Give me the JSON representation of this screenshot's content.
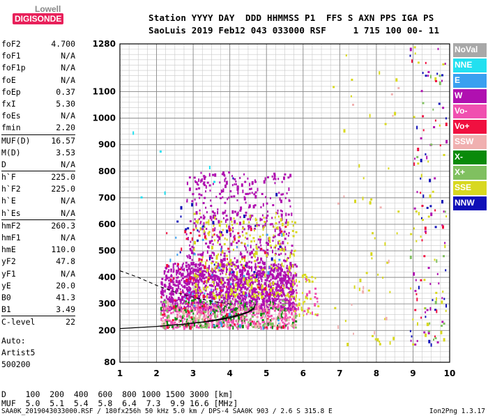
{
  "logo": {
    "top": "Lowell",
    "bottom": "DIGISONDE"
  },
  "header": {
    "line1": "Station YYYY DAY  DDD HHMMSS P1  FFS S AXN PPS IGA PS",
    "line2": "SaoLuis 2019 Feb12 043 033000 RSF     1 715 100 00- 11"
  },
  "params": [
    {
      "k": "foF2",
      "v": "4.700"
    },
    {
      "k": "foF1",
      "v": "N/A"
    },
    {
      "k": "foF1p",
      "v": "N/A"
    },
    {
      "k": "foE",
      "v": "N/A"
    },
    {
      "k": "foEp",
      "v": "0.37"
    },
    {
      "k": "fxI",
      "v": "5.30"
    },
    {
      "k": "foEs",
      "v": "N/A"
    },
    {
      "k": "fmin",
      "v": "2.20"
    },
    {
      "k": "MUF(D)",
      "v": "16.57",
      "sep": true
    },
    {
      "k": "M(D)",
      "v": "3.53"
    },
    {
      "k": "D",
      "v": "N/A"
    },
    {
      "k": "h`F",
      "v": "225.0",
      "sep": true
    },
    {
      "k": "h`F2",
      "v": "225.0"
    },
    {
      "k": "h`E",
      "v": "N/A"
    },
    {
      "k": "h`Es",
      "v": "N/A"
    },
    {
      "k": "hmF2",
      "v": "260.3",
      "sep": true
    },
    {
      "k": "hmF1",
      "v": "N/A"
    },
    {
      "k": "hmE",
      "v": "110.0"
    },
    {
      "k": "yF2",
      "v": "47.8"
    },
    {
      "k": "yF1",
      "v": "N/A"
    },
    {
      "k": "yE",
      "v": "20.0"
    },
    {
      "k": "B0",
      "v": "41.3"
    },
    {
      "k": "B1",
      "v": "3.49"
    },
    {
      "k": "C-level",
      "v": "22",
      "sep": true
    }
  ],
  "left_footer": {
    "l1": "Auto:",
    "l2": "Artist5",
    "l3": "500200"
  },
  "bottom": {
    "d_row": "D    100  200  400  600  800 1000 1500 3000 [km]",
    "muf_row": "MUF  5.0  5.1  5.4  5.8  6.4  7.3  9.9 16.6 [MHz]"
  },
  "footer": {
    "left": "SAA0K_2019043033000.RSF / 180fx256h 50 kHz 5.0 km / DPS-4 SAA0K 903 / 2.6 S 315.8 E",
    "right": "Ion2Png 1.3.17"
  },
  "legend": [
    {
      "label": "NoVal",
      "bg": "#a8a8a8",
      "fg": "#ffffff"
    },
    {
      "label": "NNE",
      "bg": "#22e0f0",
      "fg": "#ffffff"
    },
    {
      "label": "E",
      "bg": "#3aa0f0",
      "fg": "#ffffff"
    },
    {
      "label": "W",
      "bg": "#b010b0",
      "fg": "#ffffff"
    },
    {
      "label": "Vo-",
      "bg": "#f050b0",
      "fg": "#ffffff"
    },
    {
      "label": "Vo+",
      "bg": "#f01040",
      "fg": "#ffffff"
    },
    {
      "label": "SSW",
      "bg": "#f0b0b0",
      "fg": "#ffffff"
    },
    {
      "label": "X-",
      "bg": "#0a8a0a",
      "fg": "#ffffff"
    },
    {
      "label": "X+",
      "bg": "#80c060",
      "fg": "#ffffff"
    },
    {
      "label": "SSE",
      "bg": "#d8d820",
      "fg": "#ffffff"
    },
    {
      "label": "NNW",
      "bg": "#1010b8",
      "fg": "#ffffff"
    }
  ],
  "chart_data": {
    "type": "scatter",
    "title": "",
    "xlabel": "",
    "ylabel": "",
    "xlim": [
      1,
      10
    ],
    "ylim": [
      80,
      1280
    ],
    "x_ticks": [
      1,
      2,
      3,
      4,
      5,
      6,
      7,
      8,
      9,
      10
    ],
    "y_ticks": [
      80,
      200,
      300,
      400,
      500,
      600,
      700,
      800,
      900,
      1000,
      1100,
      1280
    ],
    "grid": true,
    "legend_placement": "right",
    "ordinary_trace": {
      "x": [
        1.0,
        2.0,
        3.0,
        3.5,
        4.0,
        4.3,
        4.5,
        4.65,
        4.7
      ],
      "y": [
        207,
        215,
        227,
        235,
        247,
        258,
        268,
        280,
        300
      ]
    },
    "profile_curve": {
      "x": [
        2.3,
        2.8,
        3.3,
        3.8,
        4.2,
        4.5,
        4.65
      ],
      "y": [
        218,
        224,
        233,
        245,
        258,
        270,
        285
      ]
    },
    "dashed_extrapolation": {
      "x": [
        1.0,
        1.5,
        2.0,
        2.5,
        3.0,
        3.5,
        4.0
      ],
      "y": [
        425,
        400,
        370,
        345,
        325,
        310,
        300
      ]
    },
    "scatter_regions": [
      {
        "x": [
          2.1,
          5.8
        ],
        "y": [
          280,
          460
        ],
        "color": "#b010b0",
        "n": 1100
      },
      {
        "x": [
          2.8,
          5.7
        ],
        "y": [
          330,
          800
        ],
        "color": "#b010b0",
        "n": 650
      },
      {
        "x": [
          2.1,
          5.8
        ],
        "y": [
          215,
          300
        ],
        "color": "#f050b0",
        "n": 420
      },
      {
        "x": [
          3.0,
          5.8
        ],
        "y": [
          330,
          650
        ],
        "color": "#d8d820",
        "n": 260
      },
      {
        "x": [
          2.1,
          5.8
        ],
        "y": [
          215,
          320
        ],
        "color": "#0a8a0a",
        "n": 140
      },
      {
        "x": [
          2.1,
          5.8
        ],
        "y": [
          215,
          320
        ],
        "color": "#80c060",
        "n": 90
      },
      {
        "x": [
          2.1,
          5.5
        ],
        "y": [
          215,
          600
        ],
        "color": "#f01040",
        "n": 90
      },
      {
        "x": [
          2.1,
          5.5
        ],
        "y": [
          215,
          600
        ],
        "color": "#3aa0f0",
        "n": 40
      },
      {
        "x": [
          2.5,
          5.5
        ],
        "y": [
          400,
          800
        ],
        "color": "#1010b8",
        "n": 25
      },
      {
        "x": [
          2.1,
          5.8
        ],
        "y": [
          220,
          320
        ],
        "color": "#f0b0b0",
        "n": 120
      },
      {
        "x": [
          5.6,
          6.4
        ],
        "y": [
          260,
          420
        ],
        "color": "#d8d820",
        "n": 40
      },
      {
        "x": [
          5.6,
          6.4
        ],
        "y": [
          260,
          420
        ],
        "color": "#f050b0",
        "n": 25
      },
      {
        "x": [
          8.9,
          9.9
        ],
        "y": [
          150,
          1280
        ],
        "color": "#b010b0",
        "n": 40
      },
      {
        "x": [
          8.9,
          9.9
        ],
        "y": [
          150,
          1280
        ],
        "color": "#1010b8",
        "n": 30
      },
      {
        "x": [
          8.9,
          9.9
        ],
        "y": [
          150,
          1280
        ],
        "color": "#d8d820",
        "n": 40
      },
      {
        "x": [
          8.9,
          9.9
        ],
        "y": [
          150,
          1280
        ],
        "color": "#f01040",
        "n": 25
      },
      {
        "x": [
          8.9,
          9.9
        ],
        "y": [
          150,
          1280
        ],
        "color": "#80c060",
        "n": 20
      },
      {
        "x": [
          6.8,
          8.6
        ],
        "y": [
          150,
          1280
        ],
        "color": "#d8d820",
        "n": 45
      },
      {
        "x": [
          6.8,
          8.6
        ],
        "y": [
          150,
          1280
        ],
        "color": "#f0b0b0",
        "n": 15
      },
      {
        "x": [
          1.3,
          4.0
        ],
        "y": [
          700,
          1200
        ],
        "color": "#22e0f0",
        "n": 6
      }
    ]
  }
}
